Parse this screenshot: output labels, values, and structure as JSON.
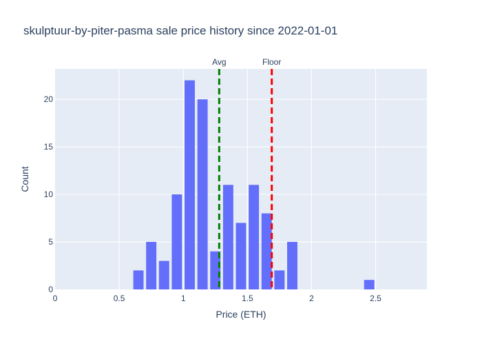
{
  "chart_data": {
    "type": "bar",
    "title": "skulptuur-by-piter-pasma sale price history since 2022-01-01",
    "xlabel": "Price (ETH)",
    "ylabel": "Count",
    "xlim": [
      0,
      2.9
    ],
    "ylim": [
      0,
      23.2
    ],
    "bin_width": 0.1,
    "x_ticks": [
      0,
      0.5,
      1,
      1.5,
      2,
      2.5
    ],
    "x_tick_labels": [
      "0",
      "0.5",
      "1",
      "1.5",
      "2",
      "2.5"
    ],
    "y_ticks": [
      0,
      5,
      10,
      15,
      20
    ],
    "y_tick_labels": [
      "0",
      "5",
      "10",
      "15",
      "20"
    ],
    "bins": [
      {
        "x": 0.65,
        "count": 2
      },
      {
        "x": 0.75,
        "count": 5
      },
      {
        "x": 0.85,
        "count": 3
      },
      {
        "x": 0.95,
        "count": 10
      },
      {
        "x": 1.05,
        "count": 22
      },
      {
        "x": 1.15,
        "count": 20
      },
      {
        "x": 1.25,
        "count": 4
      },
      {
        "x": 1.35,
        "count": 11
      },
      {
        "x": 1.45,
        "count": 7
      },
      {
        "x": 1.55,
        "count": 11
      },
      {
        "x": 1.65,
        "count": 8
      },
      {
        "x": 1.75,
        "count": 2
      },
      {
        "x": 1.85,
        "count": 5
      },
      {
        "x": 2.45,
        "count": 1
      }
    ],
    "annotations": [
      {
        "label": "Avg",
        "x": 1.28,
        "color": "#008000"
      },
      {
        "label": "Floor",
        "x": 1.69,
        "color": "#ff0000"
      }
    ],
    "bar_color": "#636efa",
    "plot_background": "#e5ecf6",
    "grid": true
  }
}
